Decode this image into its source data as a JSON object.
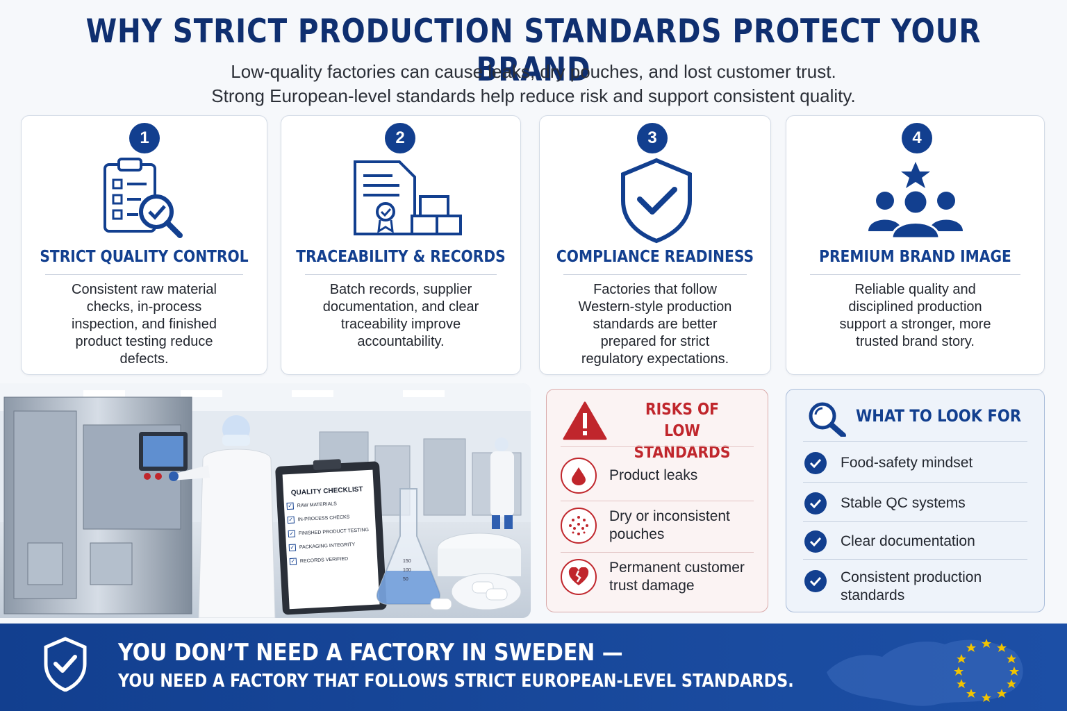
{
  "header": {
    "title": "WHY STRICT PRODUCTION STANDARDS PROTECT YOUR BRAND",
    "subtitle_line1": "Low-quality factories can cause leaks, dry pouches, and lost customer trust.",
    "subtitle_line2": "Strong European-level standards help reduce risk and support consistent quality."
  },
  "cards": [
    {
      "number": "1",
      "title": "STRICT QUALITY CONTROL",
      "desc": [
        "Consistent raw material",
        "checks, in-process",
        "inspection, and finished",
        "product testing reduce",
        "defects."
      ],
      "icon": "clipboard-checklist-magnifier-icon"
    },
    {
      "number": "2",
      "title": "TRACEABILITY & RECORDS",
      "desc": [
        "Batch records, supplier",
        "documentation, and clear",
        "traceability improve",
        "accountability."
      ],
      "icon": "document-certificate-boxes-icon"
    },
    {
      "number": "3",
      "title": "COMPLIANCE READINESS",
      "desc": [
        "Factories that follow",
        "Western-style production",
        "standards are better",
        "prepared for strict",
        "regulatory expectations."
      ],
      "icon": "shield-check-icon"
    },
    {
      "number": "4",
      "title": "PREMIUM BRAND IMAGE",
      "desc": [
        "Reliable quality and",
        "disciplined production",
        "support a stronger, more",
        "trusted brand story."
      ],
      "icon": "people-star-icon"
    }
  ],
  "photo": {
    "checklist_title": "QUALITY CHECKLIST",
    "checklist_items": [
      "RAW MATERIALS",
      "IN-PROCESS CHECKS",
      "FINISHED PRODUCT TESTING",
      "PACKAGING INTEGRITY",
      "RECORDS VERIFIED"
    ],
    "flask_marks": [
      "150",
      "100",
      "50"
    ]
  },
  "risks": {
    "title_line1": "RISKS OF",
    "title_line2": "LOW STANDARDS",
    "items": [
      {
        "icon": "drop-icon",
        "text": [
          "Product leaks"
        ]
      },
      {
        "icon": "dry-dots-icon",
        "text": [
          "Dry or inconsistent",
          "pouches"
        ]
      },
      {
        "icon": "broken-heart-icon",
        "text": [
          "Permanent customer",
          "trust damage"
        ]
      }
    ]
  },
  "look_for": {
    "title": "WHAT TO LOOK FOR",
    "items": [
      [
        "Food-safety mindset"
      ],
      [
        "Stable QC systems"
      ],
      [
        "Clear documentation"
      ],
      [
        "Consistent production",
        "standards"
      ]
    ]
  },
  "banner": {
    "line1": "YOU DON’T NEED A FACTORY IN SWEDEN —",
    "line2": "YOU NEED A FACTORY THAT FOLLOWS STRICT EUROPEAN-LEVEL STANDARDS."
  },
  "colors": {
    "navy": "#123f8f",
    "red": "#c0262c",
    "eu_star": "#f2c400"
  }
}
